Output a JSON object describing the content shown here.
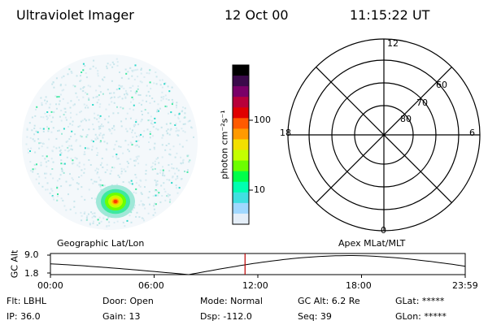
{
  "header": {
    "title": "Ultraviolet Imager",
    "date": "12 Oct 00",
    "time": "11:15:22 UT"
  },
  "colorbar": {
    "unit_label": "photon cm⁻²s⁻¹",
    "ticks": [
      "100",
      "10"
    ],
    "colors": [
      "#000000",
      "#3a0a4a",
      "#7a0068",
      "#b8003a",
      "#e00000",
      "#ff5a00",
      "#ff9a00",
      "#f2e000",
      "#c4ff00",
      "#6cff00",
      "#00ff4a",
      "#00ffb0",
      "#40e0e0",
      "#a0d8ff",
      "#e4eef8"
    ]
  },
  "polar": {
    "mlt_labels": {
      "top": "12",
      "left": "18",
      "right": "6",
      "bottom": "0"
    },
    "lat_labels": [
      "60",
      "70",
      "80"
    ]
  },
  "map_labels": {
    "left": "Geographic Lat/Lon",
    "right": "Apex MLat/MLT"
  },
  "gc_plot": {
    "ylabel": "GC Alt",
    "yticks": [
      "9.0",
      "1.8"
    ],
    "xticks": [
      "00:00",
      "06:00",
      "12:00",
      "18:00",
      "23:59"
    ],
    "marker_color": "#c00000",
    "current_hour": 11.26
  },
  "info": {
    "filter": "Flt: LBHL",
    "ip": "IP: 36.0",
    "door": "Door: Open",
    "gain": "Gain: 13",
    "mode": "Mode: Normal",
    "dsp": "Dsp: -112.0",
    "gc_alt": "GC Alt: 6.2 Re",
    "seq": "Seq: 39",
    "glat": "GLat: *****",
    "glon": "GLon: *****"
  }
}
